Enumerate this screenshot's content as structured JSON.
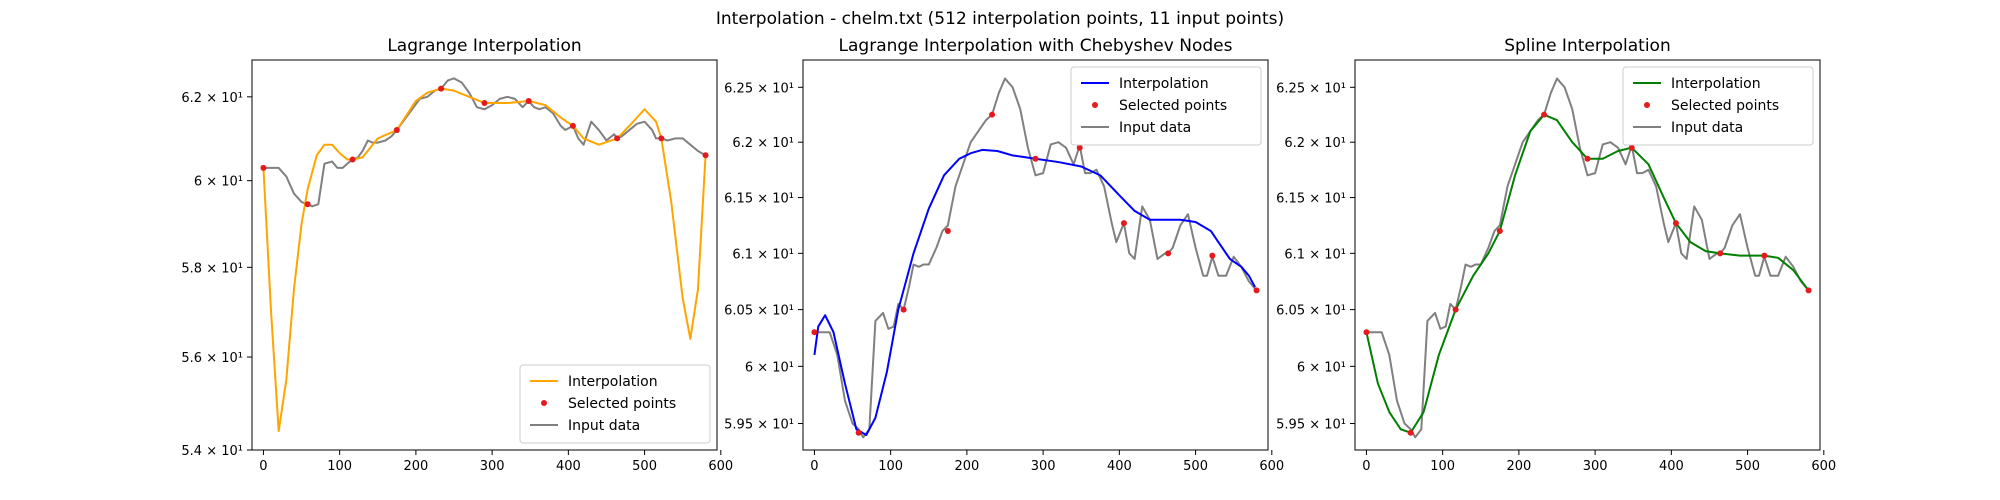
{
  "figure": {
    "suptitle": "Interpolation - chelm.txt (512 interpolation points, 11 input points)"
  },
  "chart_data": [
    {
      "type": "line",
      "title": "Lagrange Interpolation",
      "xlim": [
        -15,
        595
      ],
      "ylim": [
        54.0,
        62.9
      ],
      "yscale": "log",
      "grid": false,
      "legend_position": "lower-right",
      "x_ticks": [
        0,
        100,
        200,
        300,
        400,
        500,
        600
      ],
      "x_tick_labels": [
        "0",
        "100",
        "200",
        "300",
        "400",
        "500",
        "600"
      ],
      "y_ticks": [
        54,
        56,
        58,
        60,
        62
      ],
      "y_tick_labels": [
        "5.4 × 10¹",
        "5.6 × 10¹",
        "5.8 × 10¹",
        "6 × 10¹",
        "6.2 × 10¹"
      ],
      "series": [
        {
          "name": "Interpolation",
          "kind": "line",
          "color": "#ffa500",
          "x": [
            0,
            10,
            20,
            30,
            40,
            50,
            58,
            70,
            80,
            90,
            100,
            110,
            117,
            130,
            150,
            175,
            200,
            215,
            233,
            250,
            270,
            290,
            320,
            348,
            370,
            390,
            406,
            420,
            440,
            464,
            480,
            500,
            515,
            522,
            535,
            550,
            560,
            570,
            580
          ],
          "y": [
            60.3,
            57.0,
            54.4,
            55.5,
            57.5,
            59.0,
            59.8,
            60.6,
            60.85,
            60.85,
            60.65,
            60.5,
            60.5,
            60.55,
            61.0,
            61.2,
            61.9,
            62.1,
            62.2,
            62.15,
            62.0,
            61.85,
            61.85,
            61.9,
            61.8,
            61.5,
            61.3,
            61.0,
            60.85,
            61.0,
            61.3,
            61.7,
            61.4,
            61.0,
            59.5,
            57.3,
            56.4,
            57.5,
            60.6
          ]
        },
        {
          "name": "Selected points",
          "kind": "scatter",
          "color": "#e41a1c",
          "x": [
            0,
            58,
            117,
            175,
            233,
            290,
            348,
            406,
            464,
            522,
            580
          ],
          "y": [
            60.3,
            59.45,
            60.5,
            61.2,
            62.2,
            61.85,
            61.9,
            61.3,
            61.0,
            61.0,
            60.6
          ]
        },
        {
          "name": "Input data",
          "kind": "line",
          "color": "#808080",
          "x": [
            0,
            10,
            20,
            30,
            40,
            50,
            58,
            64,
            72,
            80,
            90,
            97,
            104,
            110,
            117,
            124,
            130,
            137,
            143,
            150,
            160,
            168,
            175,
            185,
            195,
            205,
            215,
            225,
            233,
            242,
            250,
            260,
            270,
            280,
            290,
            300,
            310,
            320,
            330,
            340,
            348,
            355,
            362,
            370,
            380,
            390,
            396,
            406,
            413,
            420,
            430,
            440,
            450,
            460,
            464,
            470,
            480,
            490,
            500,
            510,
            515,
            522,
            530,
            540,
            550,
            560,
            570,
            580
          ],
          "y": [
            60.3,
            60.3,
            60.3,
            60.1,
            59.7,
            59.5,
            59.45,
            59.4,
            59.45,
            60.4,
            60.45,
            60.3,
            60.3,
            60.4,
            60.5,
            60.55,
            60.7,
            60.95,
            60.9,
            60.9,
            60.95,
            61.05,
            61.2,
            61.45,
            61.7,
            61.95,
            62.0,
            62.15,
            62.2,
            62.4,
            62.45,
            62.35,
            62.1,
            61.75,
            61.7,
            61.8,
            61.95,
            62.0,
            61.95,
            61.75,
            61.9,
            61.75,
            61.7,
            61.75,
            61.6,
            61.3,
            61.2,
            61.3,
            61.0,
            60.85,
            61.4,
            61.2,
            60.95,
            61.1,
            61.0,
            61.05,
            61.2,
            61.35,
            61.4,
            61.2,
            61.0,
            61.0,
            60.95,
            61.0,
            61.0,
            60.85,
            60.7,
            60.6
          ]
        }
      ]
    },
    {
      "type": "line",
      "title": "Lagrange Interpolation with Chebyshev Nodes",
      "xlim": [
        -15,
        595
      ],
      "ylim": [
        59.27,
        62.75
      ],
      "yscale": "log",
      "grid": false,
      "legend_position": "upper-right",
      "x_ticks": [
        0,
        100,
        200,
        300,
        400,
        500,
        600
      ],
      "x_tick_labels": [
        "0",
        "100",
        "200",
        "300",
        "400",
        "500",
        "600"
      ],
      "y_ticks": [
        59.5,
        60.0,
        60.5,
        61.0,
        61.5,
        62.0,
        62.5
      ],
      "y_tick_labels": [
        "5.95 × 10¹",
        "6 × 10¹",
        "6.05 × 10¹",
        "6.1 × 10¹",
        "6.15 × 10¹",
        "6.2 × 10¹",
        "6.25 × 10¹"
      ],
      "series": [
        {
          "name": "Interpolation",
          "kind": "line",
          "color": "#0000ff",
          "x": [
            0,
            5,
            14,
            25,
            40,
            55,
            68,
            80,
            95,
            110,
            130,
            150,
            170,
            190,
            205,
            220,
            240,
            260,
            290,
            320,
            350,
            375,
            400,
            420,
            440,
            460,
            480,
            500,
            520,
            530,
            545,
            560,
            570,
            578
          ],
          "y": [
            60.1,
            60.35,
            60.45,
            60.3,
            59.85,
            59.45,
            59.4,
            59.55,
            59.95,
            60.5,
            61.0,
            61.4,
            61.7,
            61.85,
            61.9,
            61.93,
            61.92,
            61.88,
            61.85,
            61.82,
            61.78,
            61.7,
            61.52,
            61.38,
            61.3,
            61.3,
            61.3,
            61.28,
            61.2,
            61.1,
            60.95,
            60.88,
            60.8,
            60.7
          ]
        },
        {
          "name": "Selected points",
          "kind": "scatter",
          "color": "#e41a1c",
          "x": [
            0,
            58,
            117,
            175,
            233,
            290,
            348,
            406,
            464,
            522,
            580
          ],
          "y": [
            60.3,
            59.42,
            60.5,
            61.2,
            62.25,
            61.85,
            61.95,
            61.27,
            61.0,
            60.98,
            60.67
          ]
        },
        {
          "name": "Input data",
          "kind": "line",
          "color": "#808080",
          "x": [
            0,
            10,
            20,
            30,
            40,
            50,
            58,
            64,
            72,
            80,
            90,
            97,
            104,
            110,
            117,
            124,
            130,
            137,
            143,
            150,
            160,
            168,
            175,
            185,
            195,
            205,
            215,
            225,
            233,
            242,
            250,
            260,
            270,
            280,
            290,
            300,
            310,
            320,
            330,
            340,
            348,
            355,
            362,
            370,
            380,
            390,
            396,
            406,
            413,
            420,
            430,
            440,
            450,
            460,
            464,
            470,
            480,
            490,
            500,
            510,
            515,
            522,
            530,
            540,
            550,
            560,
            570,
            580
          ],
          "y": [
            60.3,
            60.3,
            60.3,
            60.1,
            59.7,
            59.5,
            59.45,
            59.38,
            59.45,
            60.4,
            60.47,
            60.33,
            60.35,
            60.55,
            60.5,
            60.7,
            60.9,
            60.88,
            60.9,
            60.9,
            61.05,
            61.2,
            61.25,
            61.6,
            61.8,
            62.0,
            62.1,
            62.2,
            62.25,
            62.45,
            62.58,
            62.5,
            62.3,
            61.95,
            61.7,
            61.72,
            61.98,
            62.0,
            61.95,
            61.8,
            61.97,
            61.72,
            61.72,
            61.75,
            61.6,
            61.27,
            61.1,
            61.27,
            61.0,
            60.95,
            61.42,
            61.3,
            60.95,
            61.0,
            61.0,
            61.05,
            61.25,
            61.35,
            61.05,
            60.8,
            60.8,
            60.97,
            60.8,
            60.8,
            60.97,
            60.88,
            60.75,
            60.67
          ]
        }
      ]
    },
    {
      "type": "line",
      "title": "Spline Interpolation",
      "xlim": [
        -15,
        595
      ],
      "ylim": [
        59.27,
        62.75
      ],
      "yscale": "log",
      "grid": false,
      "legend_position": "upper-right",
      "x_ticks": [
        0,
        100,
        200,
        300,
        400,
        500,
        600
      ],
      "x_tick_labels": [
        "0",
        "100",
        "200",
        "300",
        "400",
        "500",
        "600"
      ],
      "y_ticks": [
        59.5,
        60.0,
        60.5,
        61.0,
        61.5,
        62.0,
        62.5
      ],
      "y_tick_labels": [
        "5.95 × 10¹",
        "6 × 10¹",
        "6.05 × 10¹",
        "6.1 × 10¹",
        "6.15 × 10¹",
        "6.2 × 10¹",
        "6.25 × 10¹"
      ],
      "series": [
        {
          "name": "Interpolation",
          "kind": "line",
          "color": "#008000",
          "x": [
            0,
            15,
            30,
            45,
            58,
            75,
            95,
            117,
            140,
            160,
            175,
            195,
            215,
            233,
            250,
            270,
            290,
            310,
            330,
            348,
            370,
            390,
            406,
            425,
            445,
            464,
            490,
            510,
            522,
            540,
            560,
            580
          ],
          "y": [
            60.3,
            59.85,
            59.6,
            59.45,
            59.42,
            59.6,
            60.1,
            60.5,
            60.8,
            61.0,
            61.2,
            61.7,
            62.1,
            62.25,
            62.2,
            62.0,
            61.85,
            61.85,
            61.92,
            61.95,
            61.8,
            61.5,
            61.27,
            61.1,
            61.02,
            61.0,
            60.98,
            60.98,
            60.98,
            60.96,
            60.85,
            60.67
          ]
        },
        {
          "name": "Selected points",
          "kind": "scatter",
          "color": "#e41a1c",
          "x": [
            0,
            58,
            117,
            175,
            233,
            290,
            348,
            406,
            464,
            522,
            580
          ],
          "y": [
            60.3,
            59.42,
            60.5,
            61.2,
            62.25,
            61.85,
            61.95,
            61.27,
            61.0,
            60.98,
            60.67
          ]
        },
        {
          "name": "Input data",
          "kind": "line",
          "color": "#808080",
          "x": [
            0,
            10,
            20,
            30,
            40,
            50,
            58,
            64,
            72,
            80,
            90,
            97,
            104,
            110,
            117,
            124,
            130,
            137,
            143,
            150,
            160,
            168,
            175,
            185,
            195,
            205,
            215,
            225,
            233,
            242,
            250,
            260,
            270,
            280,
            290,
            300,
            310,
            320,
            330,
            340,
            348,
            355,
            362,
            370,
            380,
            390,
            396,
            406,
            413,
            420,
            430,
            440,
            450,
            460,
            464,
            470,
            480,
            490,
            500,
            510,
            515,
            522,
            530,
            540,
            550,
            560,
            570,
            580
          ],
          "y": [
            60.3,
            60.3,
            60.3,
            60.1,
            59.7,
            59.5,
            59.45,
            59.38,
            59.45,
            60.4,
            60.47,
            60.33,
            60.35,
            60.55,
            60.5,
            60.7,
            60.9,
            60.88,
            60.9,
            60.9,
            61.05,
            61.2,
            61.25,
            61.6,
            61.8,
            62.0,
            62.1,
            62.2,
            62.25,
            62.45,
            62.58,
            62.5,
            62.3,
            61.95,
            61.7,
            61.72,
            61.98,
            62.0,
            61.95,
            61.8,
            61.97,
            61.72,
            61.72,
            61.75,
            61.6,
            61.27,
            61.1,
            61.27,
            61.0,
            60.95,
            61.42,
            61.3,
            60.95,
            61.0,
            61.0,
            61.05,
            61.25,
            61.35,
            61.05,
            60.8,
            60.8,
            60.97,
            60.8,
            60.8,
            60.97,
            60.88,
            60.75,
            60.67
          ]
        }
      ]
    }
  ]
}
